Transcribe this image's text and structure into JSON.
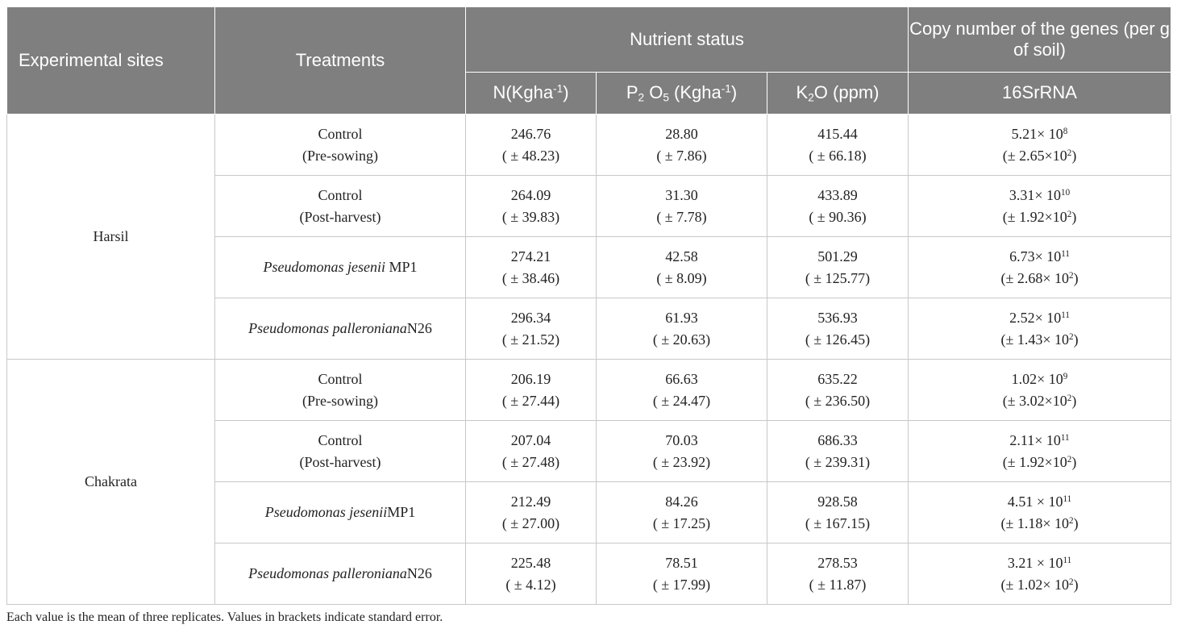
{
  "header": {
    "experimental_sites": "Experimental sites",
    "treatments": "Treatments",
    "nutrient_status": "Nutrient status",
    "copy_number": "Copy number of the genes (per g of soil)",
    "n_col": {
      "base": "N(Kgha",
      "sup": "-1",
      "tail": ")"
    },
    "p_col": {
      "p": "P",
      "p_sub": "2",
      "o": " O",
      "o_sub": "5",
      "mid": " (Kgha",
      "sup": "-1",
      "tail": ")"
    },
    "k_col": {
      "k": "K",
      "k_sub": "2",
      "tail": "O (ppm)"
    },
    "gene_col": "16SrRNA"
  },
  "sites": [
    "Harsil",
    "Chakrata"
  ],
  "rows": [
    {
      "treat": {
        "a": "Control",
        "b": "(Pre-sowing)"
      },
      "n": [
        "246.76",
        "( ± 48.23)"
      ],
      "p": [
        "28.80",
        "( ± 7.86)"
      ],
      "k": [
        "415.44",
        "( ± 66.18)"
      ],
      "g": {
        "mant": "5.21× 10",
        "exp": "8",
        "se": "(± 2.65×10",
        "se_exp": "2",
        "se_tail": ")"
      }
    },
    {
      "treat": {
        "a": "Control",
        "b": "(Post-harvest)"
      },
      "n": [
        "264.09",
        "( ± 39.83)"
      ],
      "p": [
        "31.30",
        "( ± 7.78)"
      ],
      "k": [
        "433.89",
        "( ± 90.36)"
      ],
      "g": {
        "mant": "3.31× 10",
        "exp": "10",
        "se": "(± 1.92×10",
        "se_exp": "2",
        "se_tail": ")"
      }
    },
    {
      "treat": {
        "italic": "Pseudomonas jesenii",
        "rest": " MP1"
      },
      "n": [
        "274.21",
        "( ± 38.46)"
      ],
      "p": [
        "42.58",
        "( ± 8.09)"
      ],
      "k": [
        "501.29",
        "( ± 125.77)"
      ],
      "g": {
        "mant": "6.73× 10",
        "exp": "11",
        "se": "(± 2.68× 10",
        "se_exp": "2",
        "se_tail": ")"
      }
    },
    {
      "treat": {
        "italic": "Pseudomonas palleroniana",
        "rest": "N26"
      },
      "n": [
        "296.34",
        "( ± 21.52)"
      ],
      "p": [
        "61.93",
        "( ± 20.63)"
      ],
      "k": [
        "536.93",
        "( ± 126.45)"
      ],
      "g": {
        "mant": "2.52× 10",
        "exp": "11",
        "se": "(± 1.43× 10",
        "se_exp": "2",
        "se_tail": ")"
      }
    },
    {
      "treat": {
        "a": "Control",
        "b": "(Pre-sowing)"
      },
      "n": [
        "206.19",
        "( ± 27.44)"
      ],
      "p": [
        "66.63",
        "( ± 24.47)"
      ],
      "k": [
        "635.22",
        "( ± 236.50)"
      ],
      "g": {
        "mant": "1.02× 10",
        "exp": "9",
        "se": "(± 3.02×10",
        "se_exp": "2",
        "se_tail": ")"
      }
    },
    {
      "treat": {
        "a": "Control",
        "b": "(Post-harvest)"
      },
      "n": [
        "207.04",
        "( ± 27.48)"
      ],
      "p": [
        "70.03",
        "( ± 23.92)"
      ],
      "k": [
        "686.33",
        "( ± 239.31)"
      ],
      "g": {
        "mant": "2.11× 10",
        "exp": "11",
        "se": "(± 1.92×10",
        "se_exp": "2",
        "se_tail": ")"
      }
    },
    {
      "treat": {
        "italic": "Pseudomonas jesenii",
        "rest": "MP1"
      },
      "n": [
        "212.49",
        "( ± 27.00)"
      ],
      "p": [
        "84.26",
        "( ± 17.25)"
      ],
      "k": [
        "928.58",
        "( ± 167.15)"
      ],
      "g": {
        "mant": "4.51 × 10",
        "exp": "11",
        "se": "(± 1.18× 10",
        "se_exp": "2",
        "se_tail": ")"
      }
    },
    {
      "treat": {
        "italic": "Pseudomonas palleroniana",
        "rest": "N26"
      },
      "n": [
        "225.48",
        "( ± 4.12)"
      ],
      "p": [
        "78.51",
        "( ± 17.99)"
      ],
      "k": [
        "278.53",
        "( ± 11.87)"
      ],
      "g": {
        "mant": "3.21 × 10",
        "exp": "11",
        "se": "(± 1.02× 10",
        "se_exp": "2",
        "se_tail": ")"
      }
    }
  ],
  "footnote": "Each value is the mean of three replicates. Values in brackets indicate standard error.",
  "colors": {
    "header_bg": "#7f7f7f",
    "header_text": "#ffffff",
    "grid": "#c8c8c8"
  }
}
